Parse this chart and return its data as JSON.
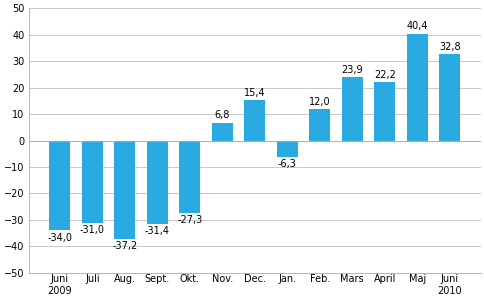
{
  "categories": [
    "Juni",
    "Juli",
    "Aug.",
    "Sept.",
    "Okt.",
    "Nov.",
    "Dec.",
    "Jan.",
    "Feb.",
    "Mars",
    "April",
    "Maj",
    "Juni"
  ],
  "year_labels": [
    [
      "Juni",
      "2009"
    ],
    [
      "Juli",
      ""
    ],
    [
      "Aug.",
      ""
    ],
    [
      "Sept.",
      ""
    ],
    [
      "Okt.",
      ""
    ],
    [
      "Nov.",
      ""
    ],
    [
      "Dec.",
      ""
    ],
    [
      "Jan.",
      ""
    ],
    [
      "Feb.",
      ""
    ],
    [
      "Mars",
      ""
    ],
    [
      "April",
      ""
    ],
    [
      "Maj",
      ""
    ],
    [
      "Juni",
      "2010"
    ]
  ],
  "values": [
    -34.0,
    -31.0,
    -37.2,
    -31.4,
    -27.3,
    6.8,
    15.4,
    -6.3,
    12.0,
    23.9,
    22.2,
    40.4,
    32.8
  ],
  "bar_color": "#29abe2",
  "ylim": [
    -50,
    50
  ],
  "yticks": [
    -50,
    -40,
    -30,
    -20,
    -10,
    0,
    10,
    20,
    30,
    40,
    50
  ],
  "background_color": "#ffffff",
  "grid_color": "#c8c8c8",
  "label_fontsize": 7.0,
  "tick_fontsize": 7.0,
  "bar_width": 0.65
}
